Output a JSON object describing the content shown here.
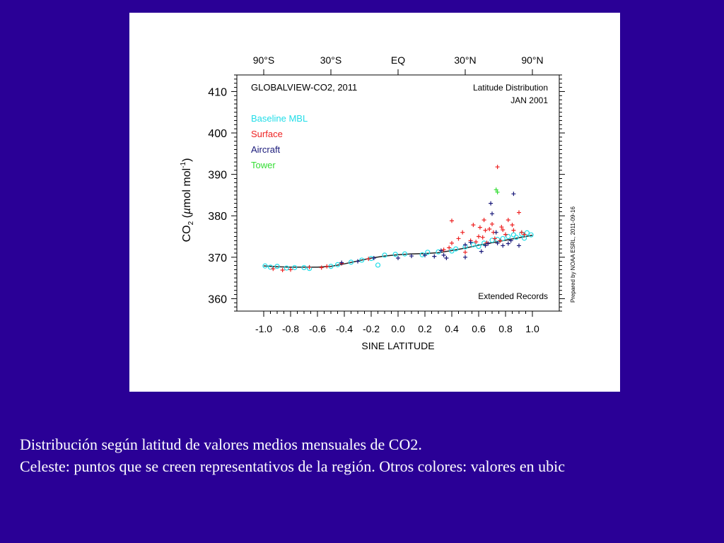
{
  "caption": {
    "line1": "Distribución según latitud de valores medios mensuales de CO2.",
    "line2": "Celeste: puntos que se creen representativos de la región. Otros colores: valores en ubic"
  },
  "chart_data": {
    "type": "scatter",
    "title": "GLOBALVIEW-CO2, 2011",
    "subtitle": [
      "Latitude Distribution",
      "JAN 2001"
    ],
    "annotation": "Extended Records",
    "credit": "Prepared by NOAA ESRL, 2011-09-16",
    "xlabel": "SINE LATITUDE",
    "ylabel": "CO2 (µmol mol-1)",
    "ylabel_parts": {
      "main": "CO",
      "sub": "2",
      "unit_open": " (",
      "mu": "µ",
      "unit_rest": "mol mol",
      "sup": "-1",
      "close": ")"
    },
    "xlim": [
      -1.0,
      1.0
    ],
    "ylim": [
      357,
      414
    ],
    "xticks": [
      -1.0,
      -0.8,
      -0.6,
      -0.4,
      -0.2,
      0.0,
      0.2,
      0.4,
      0.6,
      0.8,
      1.0
    ],
    "xtick_labels": [
      "-1.0",
      "-0.8",
      "-0.6",
      "-0.4",
      "-0.2",
      "0.0",
      "0.2",
      "0.4",
      "0.6",
      "0.8",
      "1.0"
    ],
    "yticks": [
      360,
      370,
      380,
      390,
      400,
      410
    ],
    "ytick_labels": [
      "360",
      "370",
      "380",
      "390",
      "400",
      "410"
    ],
    "top_axis": {
      "positions": [
        -1.0,
        -0.5,
        0.0,
        0.5,
        1.0
      ],
      "labels": [
        "90°S",
        "30°S",
        "EQ",
        "30°N",
        "90°N"
      ]
    },
    "legend_position": "top-left",
    "series": [
      {
        "name": "Baseline MBL",
        "color": "#22dde8",
        "marker": "circle",
        "points": [
          [
            -0.99,
            367.9
          ],
          [
            -0.95,
            367.6
          ],
          [
            -0.9,
            367.8
          ],
          [
            -0.83,
            367.4
          ],
          [
            -0.77,
            367.5
          ],
          [
            -0.7,
            367.5
          ],
          [
            -0.66,
            367.3
          ],
          [
            -0.5,
            367.8
          ],
          [
            -0.45,
            368.2
          ],
          [
            -0.35,
            368.8
          ],
          [
            -0.27,
            369.3
          ],
          [
            -0.2,
            369.7
          ],
          [
            -0.15,
            368.1
          ],
          [
            -0.1,
            370.5
          ],
          [
            -0.02,
            370.7
          ],
          [
            0.05,
            370.8
          ],
          [
            0.18,
            370.6
          ],
          [
            0.22,
            371.2
          ],
          [
            0.3,
            371.3
          ],
          [
            0.4,
            371.5
          ],
          [
            0.43,
            372.0
          ],
          [
            0.5,
            372.5
          ],
          [
            0.56,
            373.0
          ],
          [
            0.6,
            372.6
          ],
          [
            0.64,
            373.4
          ],
          [
            0.7,
            374.1
          ],
          [
            0.74,
            374.3
          ],
          [
            0.78,
            374.5
          ],
          [
            0.82,
            375.0
          ],
          [
            0.86,
            375.4
          ],
          [
            0.88,
            374.8
          ],
          [
            0.92,
            375.6
          ],
          [
            0.94,
            374.6
          ],
          [
            0.96,
            375.9
          ],
          [
            0.99,
            375.4
          ]
        ]
      },
      {
        "name": "Surface",
        "color": "#ee2222",
        "marker": "plus",
        "points": [
          [
            -0.93,
            367.2
          ],
          [
            -0.86,
            366.9
          ],
          [
            -0.8,
            367.0
          ],
          [
            -0.66,
            367.6
          ],
          [
            -0.57,
            367.5
          ],
          [
            -0.53,
            367.8
          ],
          [
            -0.42,
            368.5
          ],
          [
            -0.22,
            369.6
          ],
          [
            0.34,
            371.8
          ],
          [
            0.38,
            372.3
          ],
          [
            0.4,
            373.4
          ],
          [
            0.4,
            378.8
          ],
          [
            0.45,
            374.5
          ],
          [
            0.48,
            376.0
          ],
          [
            0.5,
            371.2
          ],
          [
            0.54,
            374.0
          ],
          [
            0.56,
            377.8
          ],
          [
            0.58,
            373.7
          ],
          [
            0.6,
            375.0
          ],
          [
            0.61,
            377.2
          ],
          [
            0.63,
            374.8
          ],
          [
            0.64,
            379.0
          ],
          [
            0.65,
            376.5
          ],
          [
            0.66,
            373.5
          ],
          [
            0.68,
            376.8
          ],
          [
            0.7,
            378.0
          ],
          [
            0.71,
            376.0
          ],
          [
            0.72,
            374.5
          ],
          [
            0.74,
            391.8
          ],
          [
            0.76,
            374.0
          ],
          [
            0.77,
            377.3
          ],
          [
            0.78,
            376.6
          ],
          [
            0.8,
            375.5
          ],
          [
            0.82,
            379.0
          ],
          [
            0.85,
            377.8
          ],
          [
            0.86,
            376.5
          ],
          [
            0.9,
            380.8
          ],
          [
            0.92,
            376.0
          ],
          [
            0.94,
            375.5
          ]
        ]
      },
      {
        "name": "Aircraft",
        "color": "#1a1a7a",
        "marker": "plus",
        "points": [
          [
            -0.42,
            368.7
          ],
          [
            -0.3,
            369.0
          ],
          [
            -0.18,
            369.8
          ],
          [
            0.0,
            369.8
          ],
          [
            0.1,
            370.3
          ],
          [
            0.2,
            370.5
          ],
          [
            0.27,
            370.2
          ],
          [
            0.32,
            371.6
          ],
          [
            0.34,
            370.5
          ],
          [
            0.36,
            369.8
          ],
          [
            0.5,
            370.0
          ],
          [
            0.5,
            373.0
          ],
          [
            0.54,
            373.6
          ],
          [
            0.62,
            371.4
          ],
          [
            0.65,
            372.8
          ],
          [
            0.67,
            373.3
          ],
          [
            0.69,
            383.0
          ],
          [
            0.7,
            380.5
          ],
          [
            0.73,
            376.0
          ],
          [
            0.74,
            373.4
          ],
          [
            0.78,
            372.8
          ],
          [
            0.82,
            373.3
          ],
          [
            0.84,
            374.0
          ],
          [
            0.86,
            385.3
          ],
          [
            0.9,
            372.8
          ]
        ]
      },
      {
        "name": "Tower",
        "color": "#33dd33",
        "marker": "plus",
        "points": [
          [
            0.73,
            386.3
          ],
          [
            0.74,
            385.7
          ]
        ]
      }
    ],
    "fit_line": {
      "x": [
        -1.0,
        -0.9,
        -0.8,
        -0.7,
        -0.6,
        -0.5,
        -0.4,
        -0.3,
        -0.2,
        -0.1,
        0.0,
        0.1,
        0.2,
        0.3,
        0.4,
        0.5,
        0.6,
        0.7,
        0.8,
        0.9,
        1.0
      ],
      "y": [
        367.9,
        367.7,
        367.6,
        367.6,
        367.6,
        367.8,
        368.4,
        369.1,
        369.8,
        370.3,
        370.6,
        370.8,
        370.9,
        371.1,
        371.6,
        372.2,
        372.9,
        373.5,
        374.1,
        374.7,
        375.3
      ]
    }
  }
}
